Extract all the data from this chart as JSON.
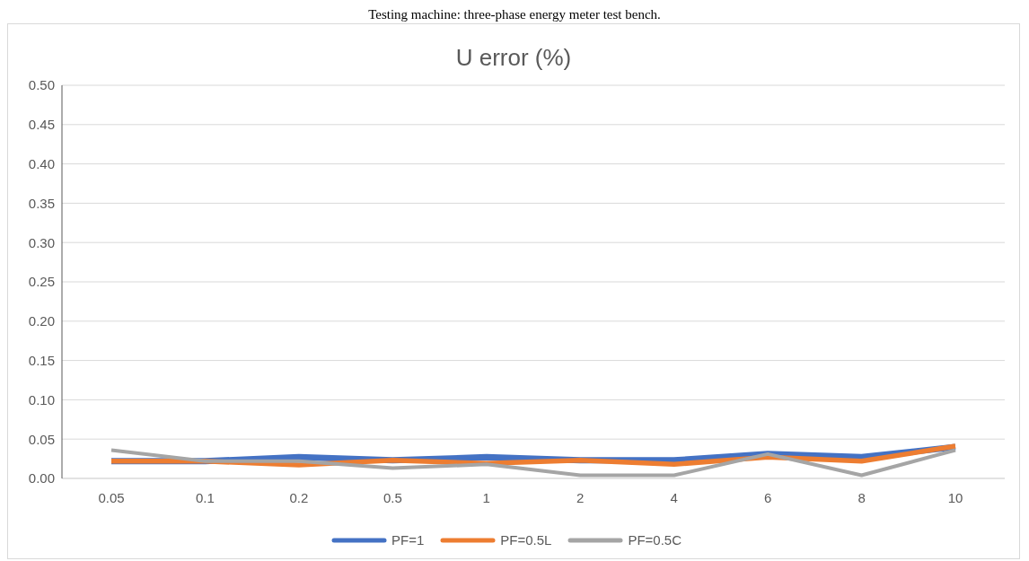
{
  "chart_data": {
    "type": "line",
    "title": "U error (%)",
    "annotations": [
      "Testing machine: three-phase energy meter test bench."
    ],
    "categories": [
      "0.05",
      "0.1",
      "0.2",
      "0.5",
      "1",
      "2",
      "4",
      "6",
      "8",
      "10"
    ],
    "series": [
      {
        "name": "PF=1",
        "color": "#4472c4",
        "values": [
          0.022,
          0.022,
          0.027,
          0.023,
          0.027,
          0.023,
          0.023,
          0.031,
          0.027,
          0.04
        ]
      },
      {
        "name": "PF=0.5L",
        "color": "#ed7d31",
        "values": [
          0.022,
          0.022,
          0.017,
          0.023,
          0.019,
          0.023,
          0.018,
          0.027,
          0.022,
          0.041
        ]
      },
      {
        "name": "PF=0.5C",
        "color": "#a5a5a5",
        "values": [
          0.036,
          0.022,
          0.022,
          0.013,
          0.018,
          0.004,
          0.004,
          0.031,
          0.004,
          0.036
        ]
      }
    ],
    "ylim": [
      0,
      0.5
    ],
    "yticks": [
      {
        "value": 0,
        "label": "0.00"
      },
      {
        "value": 0.05,
        "label": "0.05"
      },
      {
        "value": 0.1,
        "label": "0.10"
      },
      {
        "value": 0.15,
        "label": "0.15"
      },
      {
        "value": 0.2,
        "label": "0.20"
      },
      {
        "value": 0.25,
        "label": "0.25"
      },
      {
        "value": 0.3,
        "label": "0.30"
      },
      {
        "value": 0.35,
        "label": "0.35"
      },
      {
        "value": 0.4,
        "label": "0.40"
      },
      {
        "value": 0.45,
        "label": "0.45"
      },
      {
        "value": 0.5,
        "label": "0.50"
      }
    ],
    "grid": "y",
    "legend": "bottom",
    "marker": "none",
    "line_style": "solid"
  }
}
